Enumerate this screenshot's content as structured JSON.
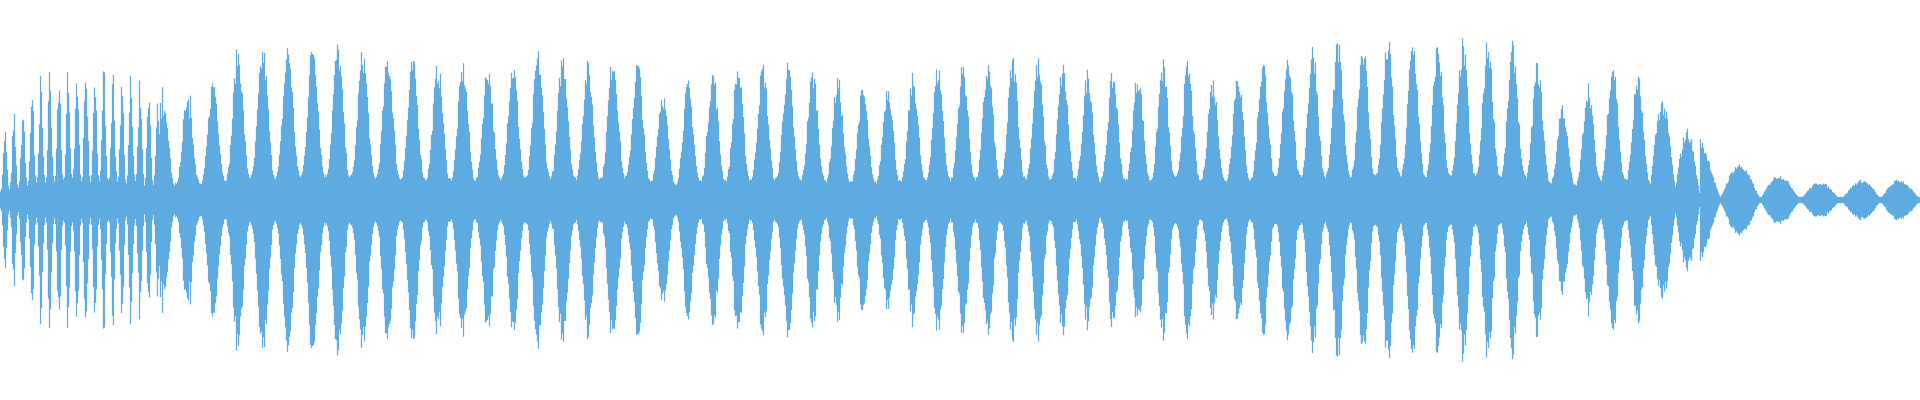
{
  "waveform": {
    "color": "#5DABE1",
    "background": "#FFFFFF",
    "envelope": [
      0.35,
      0.7,
      0.75,
      0.72,
      0.6,
      0.62,
      0.95,
      0.95,
      1.0,
      0.95,
      0.9,
      0.85,
      0.85,
      0.85,
      0.95,
      0.85,
      0.95,
      0.65,
      0.8,
      0.85,
      0.85,
      0.8,
      0.7,
      0.75,
      0.85,
      0.85,
      0.9,
      0.85,
      0.8,
      0.8,
      0.9,
      0.75,
      0.85,
      0.95,
      0.98,
      1.0,
      1.0,
      0.98,
      1.0,
      0.95,
      0.55,
      0.9,
      0.75,
      0.45,
      0.25,
      0.18,
      0.12,
      0.1,
      0.15,
      0.1
    ]
  }
}
